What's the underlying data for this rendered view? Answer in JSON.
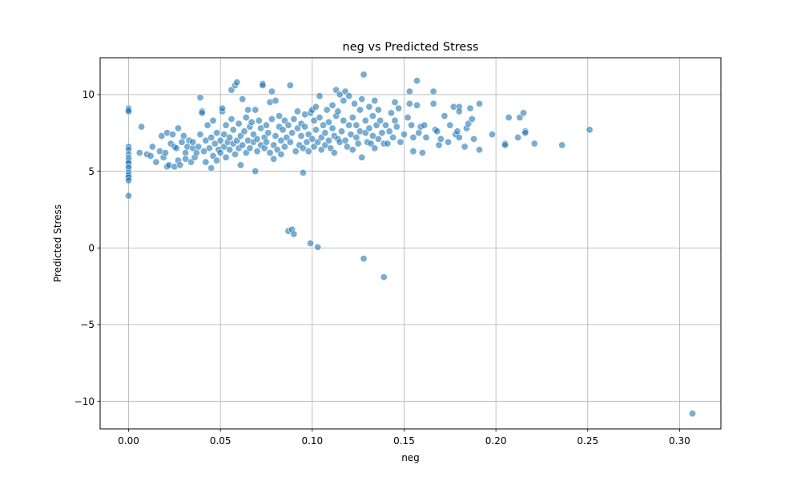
{
  "chart_data": {
    "type": "scatter",
    "title": "neg vs Predicted Stress",
    "xlabel": "neg",
    "ylabel": "Predicted Stress",
    "xlim": [
      -0.0155,
      0.3225
    ],
    "ylim": [
      -11.8,
      12.4
    ],
    "xticks": [
      0.0,
      0.05,
      0.1,
      0.15,
      0.2,
      0.25,
      0.3
    ],
    "xtick_labels": [
      "0.00",
      "0.05",
      "0.10",
      "0.15",
      "0.20",
      "0.25",
      "0.30"
    ],
    "yticks": [
      -10,
      -5,
      0,
      5,
      10
    ],
    "ytick_labels": [
      "−10",
      "−5",
      "0",
      "5",
      "10"
    ],
    "grid": true,
    "point_color": "#1f77b4",
    "point_opacity": 0.6,
    "points": [
      [
        0.0,
        9.1
      ],
      [
        0.0,
        9.0
      ],
      [
        0.0,
        8.9
      ],
      [
        0.0,
        6.6
      ],
      [
        0.0,
        6.4
      ],
      [
        0.0,
        6.1
      ],
      [
        0.0,
        5.9
      ],
      [
        0.0,
        5.8
      ],
      [
        0.0,
        5.7
      ],
      [
        0.0,
        5.6
      ],
      [
        0.0,
        5.5
      ],
      [
        0.0,
        5.3
      ],
      [
        0.0,
        5.2
      ],
      [
        0.0,
        5.0
      ],
      [
        0.0,
        4.9
      ],
      [
        0.0,
        4.8
      ],
      [
        0.0,
        4.7
      ],
      [
        0.0,
        4.6
      ],
      [
        0.0,
        4.4
      ],
      [
        0.0,
        3.4
      ],
      [
        0.007,
        7.9
      ],
      [
        0.006,
        6.2
      ],
      [
        0.01,
        6.1
      ],
      [
        0.012,
        6.0
      ],
      [
        0.013,
        6.6
      ],
      [
        0.015,
        5.6
      ],
      [
        0.017,
        6.3
      ],
      [
        0.018,
        7.3
      ],
      [
        0.019,
        5.9
      ],
      [
        0.02,
        6.2
      ],
      [
        0.021,
        7.5
      ],
      [
        0.021,
        5.3
      ],
      [
        0.022,
        5.4
      ],
      [
        0.023,
        6.8
      ],
      [
        0.024,
        7.4
      ],
      [
        0.025,
        6.6
      ],
      [
        0.025,
        5.3
      ],
      [
        0.026,
        6.5
      ],
      [
        0.027,
        7.8
      ],
      [
        0.027,
        5.7
      ],
      [
        0.028,
        5.4
      ],
      [
        0.029,
        6.9
      ],
      [
        0.03,
        7.3
      ],
      [
        0.031,
        6.2
      ],
      [
        0.031,
        5.8
      ],
      [
        0.032,
        6.6
      ],
      [
        0.033,
        7.0
      ],
      [
        0.034,
        5.6
      ],
      [
        0.035,
        6.5
      ],
      [
        0.035,
        6.9
      ],
      [
        0.036,
        5.9
      ],
      [
        0.037,
        6.2
      ],
      [
        0.038,
        6.6
      ],
      [
        0.039,
        7.4
      ],
      [
        0.039,
        9.8
      ],
      [
        0.04,
        8.9
      ],
      [
        0.04,
        8.8
      ],
      [
        0.041,
        6.3
      ],
      [
        0.042,
        7.0
      ],
      [
        0.042,
        5.6
      ],
      [
        0.043,
        8.0
      ],
      [
        0.044,
        6.5
      ],
      [
        0.045,
        7.2
      ],
      [
        0.045,
        5.2
      ],
      [
        0.046,
        8.3
      ],
      [
        0.046,
        6.0
      ],
      [
        0.047,
        6.8
      ],
      [
        0.048,
        7.5
      ],
      [
        0.048,
        5.7
      ],
      [
        0.049,
        6.4
      ],
      [
        0.05,
        7.0
      ],
      [
        0.05,
        6.2
      ],
      [
        0.051,
        8.9
      ],
      [
        0.051,
        9.1
      ],
      [
        0.052,
        6.6
      ],
      [
        0.052,
        7.4
      ],
      [
        0.053,
        5.9
      ],
      [
        0.053,
        8.0
      ],
      [
        0.054,
        6.9
      ],
      [
        0.055,
        7.2
      ],
      [
        0.055,
        6.4
      ],
      [
        0.056,
        8.4
      ],
      [
        0.056,
        10.3
      ],
      [
        0.057,
        6.8
      ],
      [
        0.057,
        7.7
      ],
      [
        0.058,
        6.1
      ],
      [
        0.058,
        10.6
      ],
      [
        0.059,
        10.8
      ],
      [
        0.059,
        7.0
      ],
      [
        0.06,
        6.5
      ],
      [
        0.06,
        8.1
      ],
      [
        0.061,
        5.4
      ],
      [
        0.061,
        7.3
      ],
      [
        0.062,
        9.7
      ],
      [
        0.062,
        6.7
      ],
      [
        0.063,
        7.6
      ],
      [
        0.064,
        6.2
      ],
      [
        0.064,
        8.5
      ],
      [
        0.065,
        7.0
      ],
      [
        0.065,
        9.0
      ],
      [
        0.066,
        6.5
      ],
      [
        0.066,
        7.9
      ],
      [
        0.067,
        8.2
      ],
      [
        0.068,
        6.9
      ],
      [
        0.068,
        7.4
      ],
      [
        0.069,
        5.0
      ],
      [
        0.069,
        9.0
      ],
      [
        0.07,
        7.1
      ],
      [
        0.07,
        6.3
      ],
      [
        0.071,
        8.3
      ],
      [
        0.072,
        6.7
      ],
      [
        0.072,
        7.8
      ],
      [
        0.073,
        10.7
      ],
      [
        0.073,
        10.6
      ],
      [
        0.074,
        7.2
      ],
      [
        0.074,
        6.5
      ],
      [
        0.075,
        8.0
      ],
      [
        0.075,
        6.9
      ],
      [
        0.076,
        7.5
      ],
      [
        0.077,
        6.2
      ],
      [
        0.077,
        9.5
      ],
      [
        0.078,
        10.2
      ],
      [
        0.078,
        8.4
      ],
      [
        0.079,
        6.7
      ],
      [
        0.079,
        5.8
      ],
      [
        0.08,
        7.3
      ],
      [
        0.08,
        9.6
      ],
      [
        0.081,
        6.4
      ],
      [
        0.082,
        7.9
      ],
      [
        0.082,
        8.6
      ],
      [
        0.083,
        6.1
      ],
      [
        0.083,
        7.0
      ],
      [
        0.084,
        7.7
      ],
      [
        0.085,
        8.3
      ],
      [
        0.085,
        6.6
      ],
      [
        0.086,
        7.2
      ],
      [
        0.087,
        8.0
      ],
      [
        0.087,
        1.1
      ],
      [
        0.088,
        6.9
      ],
      [
        0.088,
        10.6
      ],
      [
        0.089,
        1.2
      ],
      [
        0.089,
        7.5
      ],
      [
        0.09,
        0.9
      ],
      [
        0.09,
        8.4
      ],
      [
        0.091,
        6.3
      ],
      [
        0.092,
        7.8
      ],
      [
        0.092,
        8.9
      ],
      [
        0.093,
        6.7
      ],
      [
        0.094,
        7.3
      ],
      [
        0.094,
        8.1
      ],
      [
        0.095,
        6.5
      ],
      [
        0.095,
        4.9
      ],
      [
        0.096,
        7.9
      ],
      [
        0.096,
        8.7
      ],
      [
        0.097,
        6.9
      ],
      [
        0.098,
        7.4
      ],
      [
        0.098,
        6.3
      ],
      [
        0.099,
        0.3
      ],
      [
        0.099,
        8.8
      ],
      [
        0.1,
        7.1
      ],
      [
        0.1,
        9.0
      ],
      [
        0.101,
        6.6
      ],
      [
        0.101,
        8.3
      ],
      [
        0.102,
        9.2
      ],
      [
        0.102,
        7.7
      ],
      [
        0.103,
        0.05
      ],
      [
        0.103,
        6.9
      ],
      [
        0.104,
        8.5
      ],
      [
        0.104,
        9.9
      ],
      [
        0.105,
        7.2
      ],
      [
        0.105,
        6.4
      ],
      [
        0.106,
        8.0
      ],
      [
        0.107,
        7.5
      ],
      [
        0.107,
        6.7
      ],
      [
        0.108,
        9.0
      ],
      [
        0.109,
        7.0
      ],
      [
        0.109,
        8.2
      ],
      [
        0.11,
        6.5
      ],
      [
        0.111,
        7.8
      ],
      [
        0.111,
        9.3
      ],
      [
        0.112,
        7.3
      ],
      [
        0.112,
        6.2
      ],
      [
        0.113,
        8.6
      ],
      [
        0.113,
        10.3
      ],
      [
        0.114,
        7.1
      ],
      [
        0.114,
        8.9
      ],
      [
        0.115,
        6.9
      ],
      [
        0.115,
        10.0
      ],
      [
        0.116,
        7.6
      ],
      [
        0.117,
        8.3
      ],
      [
        0.117,
        9.6
      ],
      [
        0.118,
        7.0
      ],
      [
        0.118,
        10.2
      ],
      [
        0.119,
        6.6
      ],
      [
        0.12,
        8.0
      ],
      [
        0.12,
        9.9
      ],
      [
        0.121,
        7.4
      ],
      [
        0.122,
        6.4
      ],
      [
        0.122,
        8.5
      ],
      [
        0.123,
        9.4
      ],
      [
        0.124,
        7.2
      ],
      [
        0.124,
        8.0
      ],
      [
        0.125,
        6.8
      ],
      [
        0.126,
        7.6
      ],
      [
        0.126,
        9.0
      ],
      [
        0.127,
        5.9
      ],
      [
        0.127,
        9.7
      ],
      [
        0.128,
        11.3
      ],
      [
        0.128,
        -0.7
      ],
      [
        0.129,
        7.5
      ],
      [
        0.129,
        8.3
      ],
      [
        0.13,
        6.9
      ],
      [
        0.131,
        9.2
      ],
      [
        0.131,
        7.8
      ],
      [
        0.132,
        6.8
      ],
      [
        0.133,
        8.6
      ],
      [
        0.133,
        7.3
      ],
      [
        0.134,
        6.5
      ],
      [
        0.134,
        9.6
      ],
      [
        0.135,
        8.0
      ],
      [
        0.136,
        7.1
      ],
      [
        0.136,
        9.0
      ],
      [
        0.137,
        8.3
      ],
      [
        0.138,
        7.5
      ],
      [
        0.139,
        -1.9
      ],
      [
        0.139,
        6.8
      ],
      [
        0.14,
        8.0
      ],
      [
        0.141,
        6.8
      ],
      [
        0.142,
        7.6
      ],
      [
        0.143,
        8.8
      ],
      [
        0.144,
        7.2
      ],
      [
        0.145,
        9.5
      ],
      [
        0.145,
        8.3
      ],
      [
        0.146,
        7.9
      ],
      [
        0.147,
        9.1
      ],
      [
        0.148,
        6.9
      ],
      [
        0.15,
        7.4
      ],
      [
        0.152,
        8.5
      ],
      [
        0.153,
        10.2
      ],
      [
        0.153,
        9.4
      ],
      [
        0.154,
        8.0
      ],
      [
        0.155,
        6.3
      ],
      [
        0.155,
        7.2
      ],
      [
        0.157,
        10.9
      ],
      [
        0.157,
        9.3
      ],
      [
        0.158,
        7.5
      ],
      [
        0.159,
        7.9
      ],
      [
        0.16,
        6.2
      ],
      [
        0.161,
        8.0
      ],
      [
        0.162,
        7.2
      ],
      [
        0.166,
        10.2
      ],
      [
        0.166,
        9.4
      ],
      [
        0.167,
        7.7
      ],
      [
        0.168,
        7.6
      ],
      [
        0.169,
        6.7
      ],
      [
        0.17,
        7.1
      ],
      [
        0.172,
        8.6
      ],
      [
        0.174,
        6.9
      ],
      [
        0.175,
        8.0
      ],
      [
        0.177,
        9.2
      ],
      [
        0.178,
        7.4
      ],
      [
        0.179,
        7.6
      ],
      [
        0.18,
        7.2
      ],
      [
        0.18,
        9.2
      ],
      [
        0.18,
        8.9
      ],
      [
        0.183,
        6.6
      ],
      [
        0.184,
        7.8
      ],
      [
        0.185,
        8.1
      ],
      [
        0.186,
        9.1
      ],
      [
        0.187,
        8.4
      ],
      [
        0.188,
        7.1
      ],
      [
        0.191,
        9.4
      ],
      [
        0.191,
        6.4
      ],
      [
        0.198,
        7.4
      ],
      [
        0.205,
        6.8
      ],
      [
        0.205,
        6.7
      ],
      [
        0.207,
        8.5
      ],
      [
        0.212,
        7.2
      ],
      [
        0.213,
        8.5
      ],
      [
        0.215,
        8.8
      ],
      [
        0.216,
        7.6
      ],
      [
        0.216,
        7.5
      ],
      [
        0.221,
        6.8
      ],
      [
        0.236,
        6.7
      ],
      [
        0.251,
        7.7
      ],
      [
        0.307,
        -10.8
      ]
    ]
  }
}
